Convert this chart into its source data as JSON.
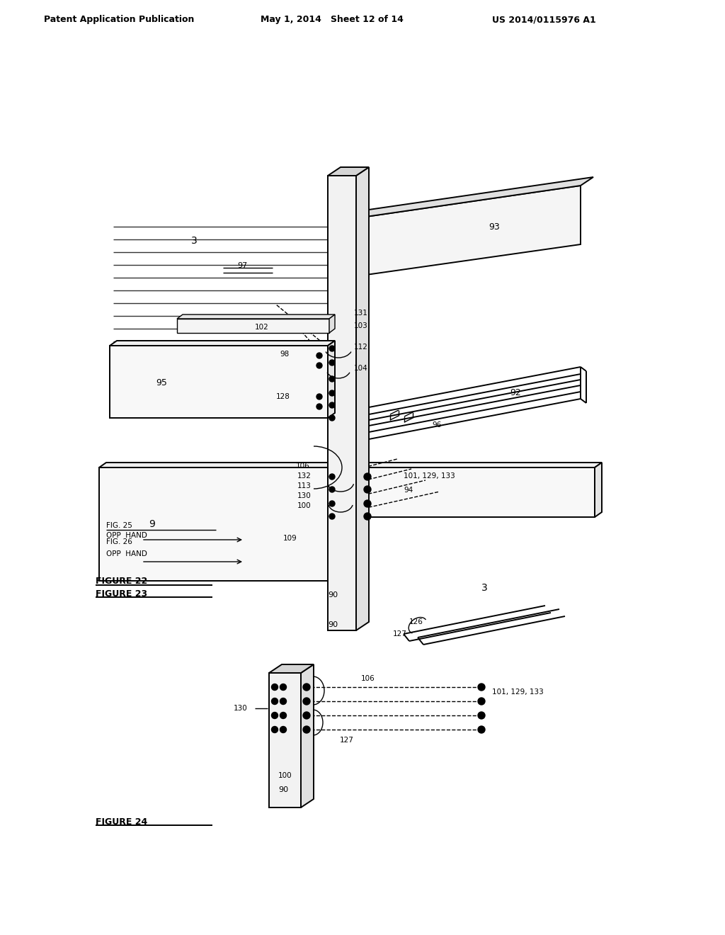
{
  "bg_color": "#ffffff",
  "header_left": "Patent Application Publication",
  "header_mid": "May 1, 2014   Sheet 12 of 14",
  "header_right": "US 2014/0115976 A1",
  "fig22_label": "FIGURE 22",
  "fig23_label": "FIGURE 23",
  "fig24_label": "FIGURE 24",
  "fig26_label": "FIG. 26",
  "fig25_label": "FIG. 25",
  "opp_hand": "OPP  HAND"
}
